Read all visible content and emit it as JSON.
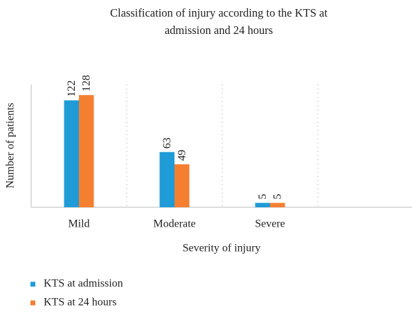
{
  "chart_data": {
    "type": "bar",
    "title": "Classification of injury according to the KTS at admission and 24 hours",
    "x_label": "Severity of injury",
    "y_label": "Number of patients",
    "categories": [
      "Mild",
      "Moderate",
      "Severe",
      null
    ],
    "series": [
      {
        "name": "KTS at admission",
        "color": "#1f9bd8",
        "values": [
          122,
          63,
          5,
          null
        ]
      },
      {
        "name": "KTS at 24 hours",
        "color": "#f47f30",
        "values": [
          128,
          49,
          5,
          null
        ]
      }
    ],
    "ylim": [
      0,
      140
    ],
    "legend": "bottom-left"
  }
}
